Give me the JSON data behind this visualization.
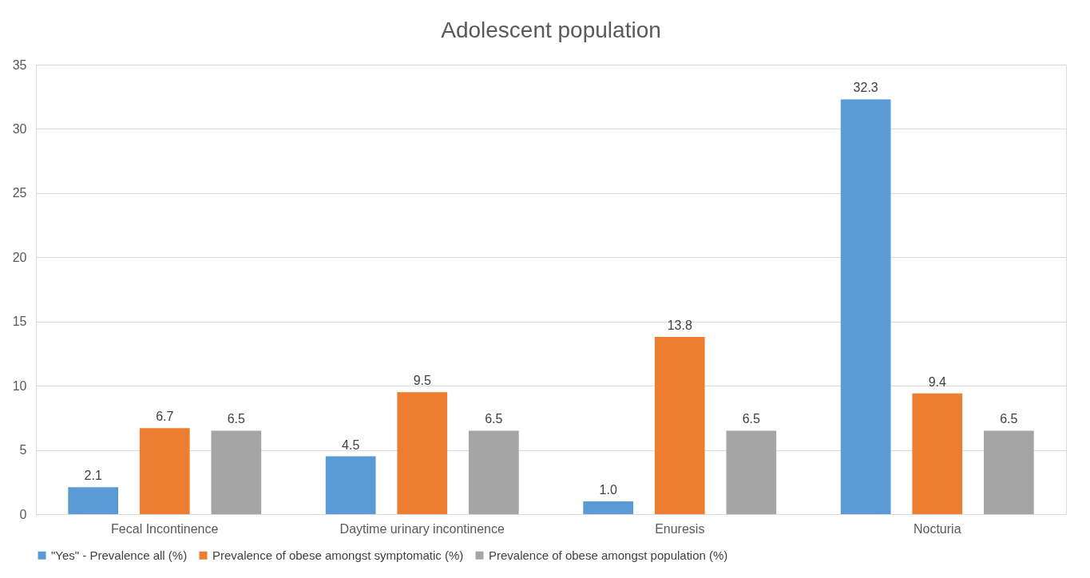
{
  "chart_data": {
    "type": "bar",
    "title": "Adolescent population",
    "categories": [
      "Fecal Incontinence",
      "Daytime urinary incontinence",
      "Enuresis",
      "Nocturia"
    ],
    "series": [
      {
        "name": "\"Yes\" - Prevalence all (%)",
        "color": "#5b9bd5",
        "values": [
          2.1,
          4.5,
          1.0,
          32.3
        ],
        "value_labels": [
          "2.1",
          "4.5",
          "1.0",
          "32.3"
        ]
      },
      {
        "name": "Prevalence of obese amongst symptomatic (%)",
        "color": "#ed7d31",
        "values": [
          6.7,
          9.5,
          13.8,
          9.4
        ],
        "value_labels": [
          "6.7",
          "9.5",
          "13.8",
          "9.4"
        ]
      },
      {
        "name": "Prevalence of obese amongst population (%)",
        "color": "#a5a5a5",
        "values": [
          6.5,
          6.5,
          6.5,
          6.5
        ],
        "value_labels": [
          "6.5",
          "6.5",
          "6.5",
          "6.5"
        ]
      }
    ],
    "ylim": [
      0,
      35
    ],
    "yticks": [
      0,
      5,
      10,
      15,
      20,
      25,
      30,
      35
    ],
    "grid": "y",
    "legend": "bottom"
  }
}
